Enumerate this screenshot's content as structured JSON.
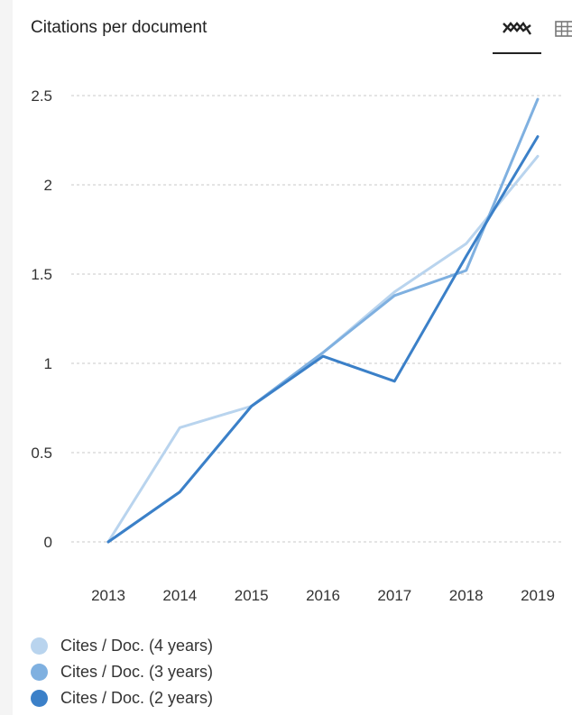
{
  "panel": {
    "title": "Citations per document",
    "chart_view_icon": "line-chart-icon",
    "table_view_icon": "table-grid-icon"
  },
  "colors": {
    "series_4y": "#b9d4ee",
    "series_3y": "#7fb0e0",
    "series_2y": "#3b80c8",
    "grid": "#c8c8c8"
  },
  "chart_data": {
    "type": "line",
    "title": "Citations per document",
    "x": [
      "2013",
      "2014",
      "2015",
      "2016",
      "2017",
      "2018",
      "2019"
    ],
    "ylim": [
      0,
      2.5
    ],
    "yticks": [
      "0",
      "0.5",
      "1",
      "1.5",
      "2",
      "2.5"
    ],
    "grid": true,
    "legend_position": "bottom-left",
    "series": [
      {
        "name": "Cites / Doc. (4 years)",
        "values": [
          0,
          0.64,
          0.76,
          1.06,
          1.4,
          1.67,
          2.16
        ]
      },
      {
        "name": "Cites / Doc. (3 years)",
        "values": [
          0,
          0.28,
          0.76,
          1.06,
          1.38,
          1.52,
          2.48
        ]
      },
      {
        "name": "Cites / Doc. (2 years)",
        "values": [
          0,
          0.28,
          0.76,
          1.04,
          0.9,
          1.6,
          2.27
        ]
      }
    ]
  }
}
